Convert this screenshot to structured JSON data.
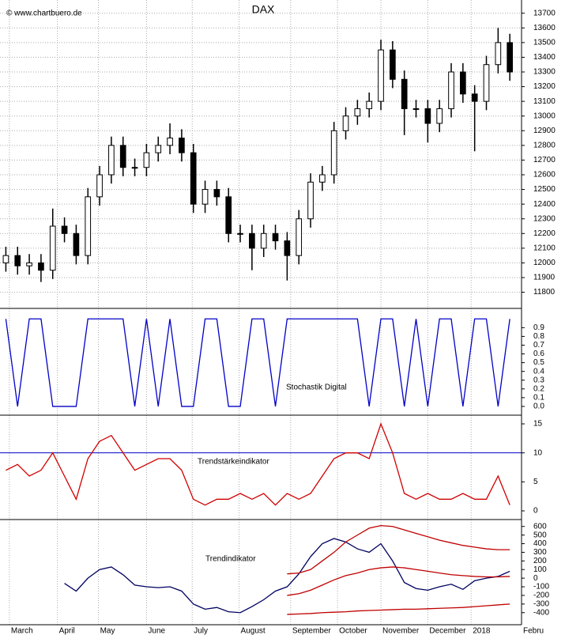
{
  "chart_data": [
    {
      "type": "candlestick",
      "title": "DAX",
      "annotation": "© www.chartbuero.de",
      "x": [
        0,
        1,
        2,
        3,
        4,
        5,
        6,
        7,
        8,
        9,
        10,
        11,
        12,
        13,
        14,
        15,
        16,
        17,
        18,
        19,
        20,
        21,
        22,
        23,
        24,
        25,
        26,
        27,
        28,
        29,
        30,
        31,
        32,
        33,
        34,
        35,
        36,
        37,
        38,
        39,
        40,
        41,
        42,
        43
      ],
      "open": [
        12000,
        12050,
        11980,
        12000,
        11950,
        12250,
        12200,
        12050,
        12450,
        12600,
        12800,
        12650,
        12650,
        12750,
        12800,
        12850,
        12750,
        12400,
        12500,
        12450,
        12200,
        12200,
        12100,
        12200,
        12150,
        12050,
        12300,
        12550,
        12600,
        12900,
        13000,
        13050,
        13100,
        13450,
        13250,
        13050,
        13050,
        12950,
        13050,
        13300,
        13150,
        13100,
        13350,
        13500
      ],
      "high": [
        12110,
        12110,
        12060,
        12060,
        12370,
        12310,
        12260,
        12510,
        12660,
        12860,
        12860,
        12710,
        12810,
        12860,
        12950,
        12910,
        12810,
        12560,
        12560,
        12510,
        12260,
        12260,
        12260,
        12260,
        12210,
        12360,
        12610,
        12660,
        12960,
        13060,
        13110,
        13160,
        13520,
        13510,
        13310,
        13110,
        13110,
        13110,
        13360,
        13360,
        13210,
        13410,
        13600,
        13560
      ],
      "low": [
        11940,
        11920,
        11920,
        11870,
        11890,
        12140,
        11990,
        11990,
        12390,
        12540,
        12590,
        12590,
        12590,
        12690,
        12740,
        12690,
        12340,
        12340,
        12390,
        12140,
        12140,
        11950,
        12040,
        12090,
        11880,
        11990,
        12240,
        12490,
        12540,
        12840,
        12940,
        12990,
        13040,
        13190,
        12870,
        12990,
        12820,
        12890,
        12990,
        13090,
        12760,
        13040,
        13290,
        13240
      ],
      "close": [
        12050,
        11980,
        12000,
        11950,
        12250,
        12200,
        12050,
        12450,
        12600,
        12800,
        12650,
        12650,
        12750,
        12800,
        12850,
        12750,
        12400,
        12500,
        12450,
        12200,
        12200,
        12100,
        12200,
        12150,
        12050,
        12300,
        12550,
        12600,
        12900,
        13000,
        13050,
        13100,
        13450,
        13250,
        13050,
        13050,
        12950,
        13050,
        13300,
        13150,
        13100,
        13350,
        13500,
        13300
      ],
      "up_color": "#ffffff",
      "down_color": "#000000",
      "xlim": [
        -0.5,
        44
      ],
      "ylim": [
        11690,
        13790
      ],
      "yticks": [
        11800,
        11900,
        12000,
        12100,
        12200,
        12300,
        12400,
        12500,
        12600,
        12700,
        12800,
        12900,
        13000,
        13100,
        13200,
        13300,
        13400,
        13500,
        13600,
        13700
      ],
      "grid": true
    },
    {
      "type": "line",
      "annotation": "Stochastik Digital",
      "x": [
        0,
        1,
        2,
        3,
        4,
        5,
        6,
        7,
        8,
        9,
        10,
        11,
        12,
        13,
        14,
        15,
        16,
        17,
        18,
        19,
        20,
        21,
        22,
        23,
        24,
        25,
        26,
        27,
        28,
        29,
        30,
        31,
        32,
        33,
        34,
        35,
        36,
        37,
        38,
        39,
        40,
        41,
        42,
        43
      ],
      "series": [
        {
          "color": "#0000c8",
          "values": [
            1,
            0,
            1,
            1,
            0,
            0,
            0,
            1,
            1,
            1,
            1,
            0,
            1,
            0,
            1,
            0,
            0,
            1,
            1,
            0,
            0,
            1,
            1,
            0,
            1,
            1,
            1,
            1,
            1,
            1,
            1,
            0,
            1,
            1,
            0,
            1,
            0,
            1,
            1,
            0,
            1,
            1,
            0,
            1
          ]
        }
      ],
      "xlim": [
        -0.5,
        44
      ],
      "ylim": [
        -0.1,
        1.12
      ],
      "yticks": [
        {
          "value": 0,
          "label": "0.0"
        },
        0.1,
        0.2,
        0.3,
        0.4,
        0.5,
        0.6,
        0.7,
        0.8,
        0.9
      ],
      "annotation_color": "#0000c8"
    },
    {
      "type": "line",
      "annotation": "Trendstärkeindikator",
      "x": [
        0,
        1,
        2,
        3,
        4,
        5,
        6,
        7,
        8,
        9,
        10,
        11,
        12,
        13,
        14,
        15,
        16,
        17,
        18,
        19,
        20,
        21,
        22,
        23,
        24,
        25,
        26,
        27,
        28,
        29,
        30,
        31,
        32,
        33,
        34,
        35,
        36,
        37,
        38,
        39,
        40,
        41,
        42,
        43
      ],
      "series": [
        {
          "color": "#d00000",
          "values": [
            7,
            8,
            6,
            7,
            10,
            6,
            2,
            9,
            12,
            13,
            10,
            7,
            8,
            9,
            9,
            7,
            2,
            1,
            2,
            2,
            3,
            2,
            3,
            1,
            3,
            2,
            3,
            6,
            9,
            10,
            10,
            9,
            15,
            10,
            3,
            2,
            3,
            2,
            2,
            3,
            2,
            2,
            6,
            1
          ]
        }
      ],
      "xlim": [
        -0.5,
        44
      ],
      "ylim": [
        -1.5,
        16.5
      ],
      "yticks": [
        0,
        5,
        10,
        15
      ],
      "hline": 10,
      "hline_color": "#0000c8",
      "annotation_color": "#d00000"
    },
    {
      "type": "line",
      "annotation": "Trendindikator",
      "x": [
        0,
        1,
        2,
        3,
        4,
        5,
        6,
        7,
        8,
        9,
        10,
        11,
        12,
        13,
        14,
        15,
        16,
        17,
        18,
        19,
        20,
        21,
        22,
        23,
        24,
        25,
        26,
        27,
        28,
        29,
        30,
        31,
        32,
        33,
        34,
        35,
        36,
        37,
        38,
        39,
        40,
        41,
        42,
        43
      ],
      "series": [
        {
          "color": "#000060",
          "values": [
            null,
            null,
            null,
            null,
            null,
            -60,
            -150,
            0,
            100,
            130,
            40,
            -80,
            -100,
            -110,
            -100,
            -150,
            -300,
            -360,
            -340,
            -390,
            -400,
            -330,
            -250,
            -150,
            -100,
            50,
            250,
            400,
            460,
            420,
            340,
            300,
            400,
            200,
            -50,
            -120,
            -140,
            -100,
            -70,
            -130,
            -30,
            0,
            20,
            80
          ]
        },
        {
          "color": "#c00000",
          "values": [
            null,
            null,
            null,
            null,
            null,
            null,
            null,
            null,
            null,
            null,
            null,
            null,
            null,
            null,
            null,
            null,
            null,
            null,
            null,
            null,
            null,
            null,
            null,
            null,
            50,
            60,
            100,
            200,
            300,
            420,
            500,
            580,
            610,
            600,
            560,
            520,
            480,
            440,
            410,
            380,
            360,
            340,
            330,
            330
          ]
        },
        {
          "color": "#c00000",
          "values": [
            null,
            null,
            null,
            null,
            null,
            null,
            null,
            null,
            null,
            null,
            null,
            null,
            null,
            null,
            null,
            null,
            null,
            null,
            null,
            null,
            null,
            null,
            null,
            null,
            -200,
            -180,
            -140,
            -80,
            -20,
            30,
            60,
            100,
            120,
            130,
            120,
            100,
            80,
            60,
            40,
            30,
            20,
            15,
            15,
            20
          ]
        },
        {
          "color": "#c00000",
          "values": [
            null,
            null,
            null,
            null,
            null,
            null,
            null,
            null,
            null,
            null,
            null,
            null,
            null,
            null,
            null,
            null,
            null,
            null,
            null,
            null,
            null,
            null,
            null,
            null,
            -420,
            -415,
            -410,
            -400,
            -395,
            -390,
            -380,
            -375,
            -370,
            -365,
            -360,
            -360,
            -355,
            -350,
            -345,
            -340,
            -330,
            -320,
            -310,
            -300
          ]
        }
      ],
      "xlim": [
        -0.5,
        44
      ],
      "ylim": [
        -540,
        680
      ],
      "yticks": [
        -400,
        -300,
        -200,
        -100,
        0,
        100,
        200,
        300,
        400,
        500,
        600
      ],
      "xticks": [
        {
          "value": 0.3,
          "label": "March"
        },
        {
          "value": 4.4,
          "label": "April"
        },
        {
          "value": 7.9,
          "label": "May"
        },
        {
          "value": 12,
          "label": "June"
        },
        {
          "value": 15.9,
          "label": "July"
        },
        {
          "value": 19.9,
          "label": "August"
        },
        {
          "value": 24.3,
          "label": "September"
        },
        {
          "value": 28.3,
          "label": "October"
        },
        {
          "value": 32,
          "label": "November"
        },
        {
          "value": 36,
          "label": "December"
        },
        {
          "value": 39.7,
          "label": "2018"
        },
        {
          "value": 44,
          "label": "Febru"
        }
      ],
      "annotation_color": "#0000c8"
    }
  ]
}
